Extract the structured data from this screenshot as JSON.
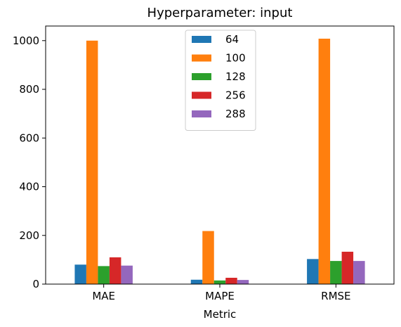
{
  "chart_data": {
    "type": "bar",
    "title": "Hyperparameter: input",
    "xlabel": "Metric",
    "ylabel": "",
    "categories": [
      "MAE",
      "MAPE",
      "RMSE"
    ],
    "ylim": [
      0,
      1060
    ],
    "yticks": [
      0,
      200,
      400,
      600,
      800,
      1000
    ],
    "series": [
      {
        "name": "64",
        "color": "#1f77b4",
        "values": [
          80,
          18,
          103
        ]
      },
      {
        "name": "100",
        "color": "#ff7f0e",
        "values": [
          1000,
          218,
          1008
        ]
      },
      {
        "name": "128",
        "color": "#2ca02c",
        "values": [
          74,
          15,
          95
        ]
      },
      {
        "name": "256",
        "color": "#d62728",
        "values": [
          110,
          26,
          133
        ]
      },
      {
        "name": "288",
        "color": "#9467bd",
        "values": [
          76,
          17,
          95
        ]
      }
    ],
    "legend": "top-center",
    "grid": false
  }
}
